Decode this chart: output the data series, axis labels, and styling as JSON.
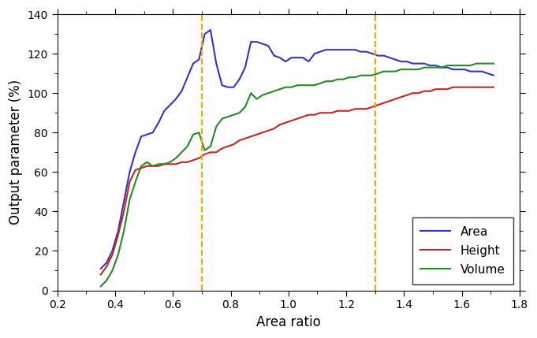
{
  "title": "",
  "xlabel": "Area ratio",
  "ylabel": "Output parameter (%)",
  "xlim": [
    0.2,
    1.8
  ],
  "ylim": [
    0,
    140
  ],
  "xticks": [
    0.2,
    0.4,
    0.6,
    0.8,
    1.0,
    1.2,
    1.4,
    1.6,
    1.8
  ],
  "yticks": [
    0,
    20,
    40,
    60,
    80,
    100,
    120,
    140
  ],
  "vline1": 0.7,
  "vline2": 1.3,
  "vline_color": "#FFA500",
  "vline_style": "--",
  "legend_labels": [
    "Area",
    "Height",
    "Volume"
  ],
  "line_colors": [
    "#3333CC",
    "#CC2222",
    "#228B22"
  ],
  "area_x": [
    0.35,
    0.37,
    0.39,
    0.41,
    0.43,
    0.45,
    0.47,
    0.49,
    0.51,
    0.53,
    0.55,
    0.57,
    0.59,
    0.61,
    0.63,
    0.65,
    0.67,
    0.69,
    0.71,
    0.73,
    0.75,
    0.77,
    0.79,
    0.81,
    0.83,
    0.85,
    0.87,
    0.89,
    0.91,
    0.93,
    0.95,
    0.97,
    0.99,
    1.01,
    1.03,
    1.05,
    1.07,
    1.09,
    1.11,
    1.13,
    1.15,
    1.17,
    1.19,
    1.21,
    1.23,
    1.25,
    1.27,
    1.29,
    1.31,
    1.33,
    1.35,
    1.37,
    1.39,
    1.41,
    1.43,
    1.45,
    1.47,
    1.49,
    1.51,
    1.53,
    1.55,
    1.57,
    1.59,
    1.61,
    1.63,
    1.65,
    1.67,
    1.69,
    1.71
  ],
  "area_y": [
    11,
    14,
    20,
    30,
    45,
    60,
    70,
    78,
    79,
    80,
    85,
    91,
    94,
    97,
    101,
    108,
    115,
    117,
    130,
    132,
    115,
    104,
    103,
    103,
    107,
    113,
    126,
    126,
    125,
    124,
    119,
    118,
    116,
    118,
    118,
    118,
    116,
    120,
    121,
    122,
    122,
    122,
    122,
    122,
    122,
    121,
    121,
    120,
    119,
    119,
    118,
    117,
    116,
    116,
    115,
    115,
    115,
    114,
    114,
    113,
    113,
    112,
    112,
    112,
    111,
    111,
    111,
    110,
    109
  ],
  "height_x": [
    0.35,
    0.37,
    0.39,
    0.41,
    0.43,
    0.45,
    0.47,
    0.49,
    0.51,
    0.53,
    0.55,
    0.57,
    0.59,
    0.61,
    0.63,
    0.65,
    0.67,
    0.69,
    0.71,
    0.73,
    0.75,
    0.77,
    0.79,
    0.81,
    0.83,
    0.85,
    0.87,
    0.89,
    0.91,
    0.93,
    0.95,
    0.97,
    0.99,
    1.01,
    1.03,
    1.05,
    1.07,
    1.09,
    1.11,
    1.13,
    1.15,
    1.17,
    1.19,
    1.21,
    1.23,
    1.25,
    1.27,
    1.29,
    1.31,
    1.33,
    1.35,
    1.37,
    1.39,
    1.41,
    1.43,
    1.45,
    1.47,
    1.49,
    1.51,
    1.53,
    1.55,
    1.57,
    1.59,
    1.61,
    1.63,
    1.65,
    1.67,
    1.69,
    1.71
  ],
  "height_y": [
    8,
    12,
    18,
    28,
    40,
    55,
    61,
    62,
    63,
    63,
    63,
    64,
    64,
    64,
    65,
    65,
    66,
    67,
    69,
    70,
    70,
    72,
    73,
    74,
    76,
    77,
    78,
    79,
    80,
    81,
    82,
    84,
    85,
    86,
    87,
    88,
    89,
    89,
    90,
    90,
    90,
    91,
    91,
    91,
    92,
    92,
    92,
    93,
    94,
    95,
    96,
    97,
    98,
    99,
    100,
    100,
    101,
    101,
    102,
    102,
    102,
    103,
    103,
    103,
    103,
    103,
    103,
    103,
    103
  ],
  "volume_x": [
    0.35,
    0.37,
    0.39,
    0.41,
    0.43,
    0.45,
    0.47,
    0.49,
    0.51,
    0.53,
    0.55,
    0.57,
    0.59,
    0.61,
    0.63,
    0.65,
    0.67,
    0.69,
    0.71,
    0.73,
    0.75,
    0.77,
    0.79,
    0.81,
    0.83,
    0.85,
    0.87,
    0.89,
    0.91,
    0.93,
    0.95,
    0.97,
    0.99,
    1.01,
    1.03,
    1.05,
    1.07,
    1.09,
    1.11,
    1.13,
    1.15,
    1.17,
    1.19,
    1.21,
    1.23,
    1.25,
    1.27,
    1.29,
    1.31,
    1.33,
    1.35,
    1.37,
    1.39,
    1.41,
    1.43,
    1.45,
    1.47,
    1.49,
    1.51,
    1.53,
    1.55,
    1.57,
    1.59,
    1.61,
    1.63,
    1.65,
    1.67,
    1.69,
    1.71
  ],
  "volume_y": [
    2,
    5,
    10,
    18,
    30,
    46,
    55,
    63,
    65,
    63,
    64,
    64,
    65,
    67,
    70,
    73,
    79,
    80,
    71,
    73,
    83,
    87,
    88,
    89,
    90,
    93,
    100,
    97,
    99,
    100,
    101,
    102,
    103,
    103,
    104,
    104,
    104,
    104,
    105,
    106,
    106,
    107,
    107,
    108,
    108,
    109,
    109,
    109,
    110,
    111,
    111,
    111,
    112,
    112,
    112,
    112,
    113,
    113,
    113,
    113,
    114,
    114,
    114,
    114,
    114,
    115,
    115,
    115,
    115
  ]
}
